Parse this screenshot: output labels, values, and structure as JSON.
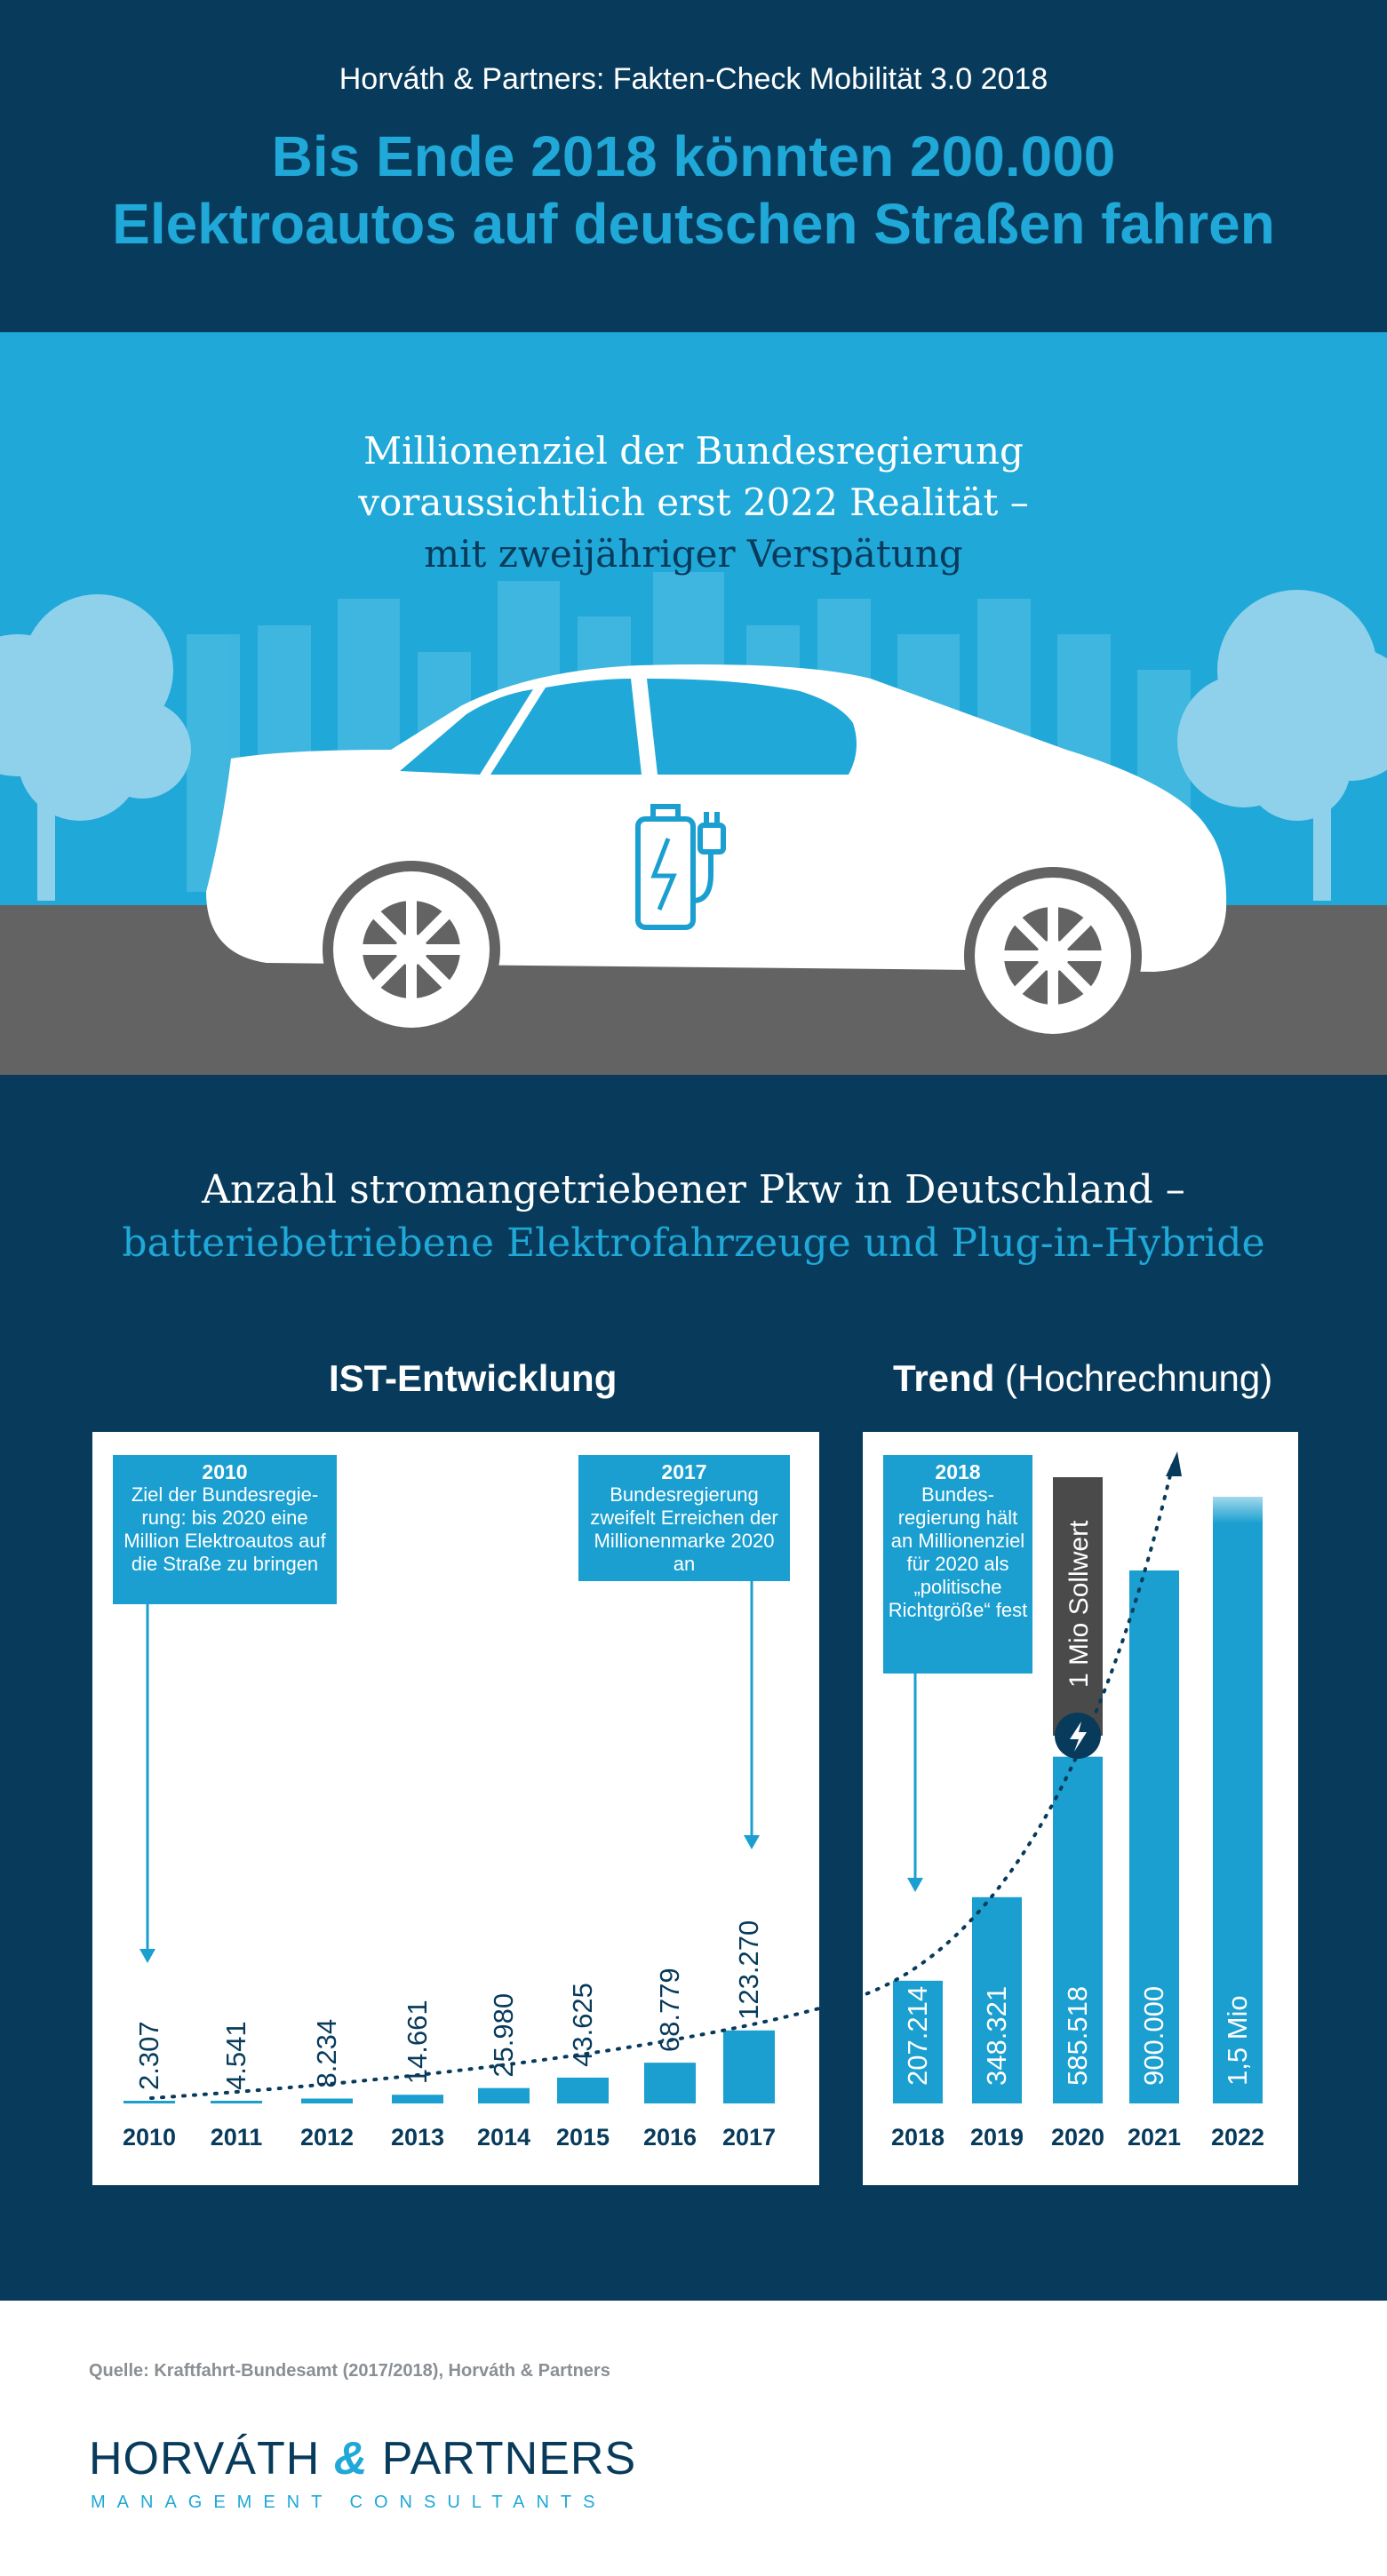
{
  "header": {
    "kicker": "Horváth & Partners: Fakten-Check Mobilität 3.0 2018",
    "headline_line1": "Bis Ende 2018 könnten 200.000",
    "headline_line2": "Elektroautos auf deutschen Straßen fahren"
  },
  "scene": {
    "line1": "Millionenziel der Bundesregierung",
    "line2": "voraussichtlich erst 2022 Realität –",
    "line3": "mit zweijähriger Verspätung",
    "icon": "car-charging-icon"
  },
  "section": {
    "title_line1": "Anzahl stromangetriebener Pkw in Deutschland –",
    "title_line2": "batteriebetriebene Elektrofahrzeuge und Plug-in-Hybride"
  },
  "colors": {
    "navy": "#083b5b",
    "accent": "#1fa8d8",
    "bar": "#1a9fd0",
    "sky": "#1fa8d8",
    "road": "#636363"
  },
  "panels": {
    "ist_title": "IST-Entwicklung",
    "trend_title_bold": "Trend",
    "trend_title_rest": "(Hochrechnung)"
  },
  "callouts": {
    "c2010_year": "2010",
    "c2010_text": "Ziel der Bundesregie-rung: bis 2020 eine Million Elektroautos auf die Straße zu bringen",
    "c2017_year": "2017",
    "c2017_text": "Bundesregierung zweifelt Erreichen der Millionenmarke 2020 an",
    "c2018_year": "2018",
    "c2018_text": "Bundes-regierung hält an Millionenziel für 2020 als „politische Richtgröße“ fest",
    "target_label": "1 Mio Sollwert"
  },
  "chart_data": [
    {
      "type": "bar",
      "title": "IST-Entwicklung",
      "categories": [
        "2010",
        "2011",
        "2012",
        "2013",
        "2014",
        "2015",
        "2016",
        "2017"
      ],
      "values": [
        2307,
        4541,
        8234,
        14661,
        25980,
        43625,
        68779,
        123270
      ],
      "value_labels": [
        "2.307",
        "4.541",
        "8.234",
        "14.661",
        "25.980",
        "43.625",
        "68.779",
        "123.270"
      ]
    },
    {
      "type": "bar",
      "title": "Trend (Hochrechnung)",
      "categories": [
        "2018",
        "2019",
        "2020",
        "2021",
        "2022"
      ],
      "values": [
        207214,
        348321,
        585518,
        900000,
        1500000
      ],
      "value_labels": [
        "207.214",
        "348.321",
        "585.518",
        "900.000",
        "1,5 Mio"
      ],
      "reference_line": {
        "label": "1 Mio Sollwert",
        "value": 1000000
      }
    }
  ],
  "footer": {
    "source": "Quelle: Kraftfahrt-Bundesamt (2017/2018), Horváth & Partners",
    "logo_left": "HORVÁTH",
    "logo_amp": "&",
    "logo_right": "PARTNERS",
    "tagline": "MANAGEMENT CONSULTANTS"
  }
}
